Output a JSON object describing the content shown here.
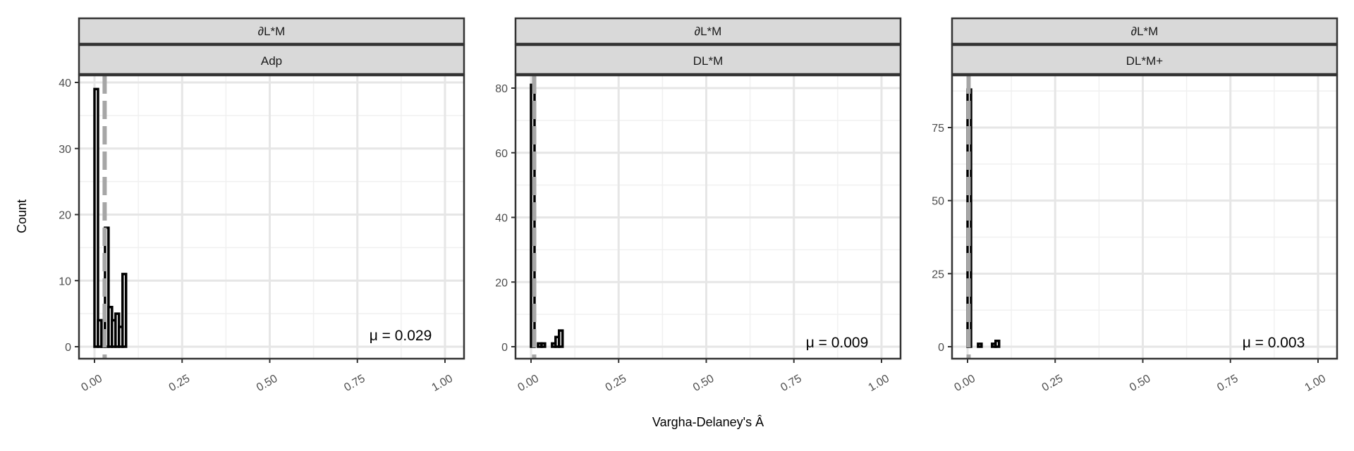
{
  "chart_data": {
    "type": "bar",
    "subtype": "faceted-histogram",
    "xlabel": "Vargha-Delaney's Â",
    "ylabel": "Count",
    "xlim": [
      0,
      1
    ],
    "x_ticks": [
      "0.00",
      "0.25",
      "0.50",
      "0.75",
      "1.00"
    ],
    "grid": true,
    "mean_line": {
      "style": "dashed",
      "color": "#a6a6a6"
    },
    "bar_outline_color": "#000000",
    "bin_width": 0.01,
    "panels": [
      {
        "strip_top": "∂L*M",
        "strip_bottom": "Adp",
        "ylim": [
          0,
          40
        ],
        "y_ticks": [
          0,
          10,
          20,
          30,
          40
        ],
        "bins_x": [
          0.0,
          0.01,
          0.02,
          0.03,
          0.04,
          0.05,
          0.06,
          0.07,
          0.08,
          0.09
        ],
        "counts": [
          39,
          4,
          4,
          18,
          6,
          4,
          5,
          3,
          11,
          0
        ],
        "mean": 0.029,
        "mean_label": "μ = 0.029"
      },
      {
        "strip_top": "∂L*M",
        "strip_bottom": "DL*M",
        "ylim": [
          0,
          80
        ],
        "y_ticks": [
          0,
          20,
          40,
          60,
          80
        ],
        "bins_x": [
          0.0,
          0.01,
          0.02,
          0.03,
          0.04,
          0.05,
          0.06,
          0.07,
          0.08,
          0.09
        ],
        "counts": [
          81,
          0,
          1,
          1,
          0,
          0,
          1,
          3,
          5,
          0
        ],
        "mean": 0.009,
        "mean_label": "μ = 0.009"
      },
      {
        "strip_top": "∂L*M",
        "strip_bottom": "DL*M+",
        "ylim": [
          0,
          90
        ],
        "y_ticks": [
          0,
          25,
          50,
          75
        ],
        "bins_x": [
          0.0,
          0.01,
          0.02,
          0.03,
          0.04,
          0.05,
          0.06,
          0.07,
          0.08,
          0.09
        ],
        "counts": [
          88,
          0,
          0,
          1,
          0,
          0,
          0,
          1,
          2,
          0
        ],
        "mean": 0.003,
        "mean_label": "μ = 0.003"
      }
    ]
  }
}
